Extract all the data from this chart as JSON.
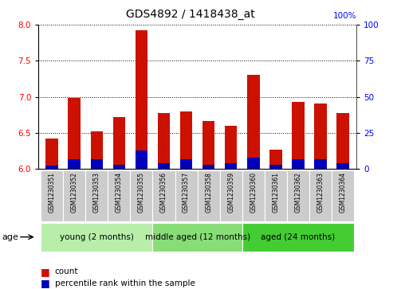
{
  "title": "GDS4892 / 1418438_at",
  "samples": [
    "GSM1230351",
    "GSM1230352",
    "GSM1230353",
    "GSM1230354",
    "GSM1230355",
    "GSM1230356",
    "GSM1230357",
    "GSM1230358",
    "GSM1230359",
    "GSM1230360",
    "GSM1230361",
    "GSM1230362",
    "GSM1230363",
    "GSM1230364"
  ],
  "count_values": [
    6.42,
    6.99,
    6.52,
    6.72,
    7.92,
    6.77,
    6.8,
    6.67,
    6.6,
    7.3,
    6.27,
    6.93,
    6.91,
    6.78
  ],
  "percentile_values": [
    2.5,
    7,
    7,
    3,
    13,
    4,
    7,
    3,
    4,
    8,
    3,
    7,
    7,
    4
  ],
  "ylim_left": [
    6.0,
    8.0
  ],
  "ylim_right": [
    0,
    100
  ],
  "yticks_left": [
    6.0,
    6.5,
    7.0,
    7.5,
    8.0
  ],
  "yticks_right": [
    0,
    25,
    50,
    75,
    100
  ],
  "groups": [
    {
      "label": "young (2 months)",
      "indices": [
        0,
        1,
        2,
        3,
        4
      ],
      "color": "#b8eeaa"
    },
    {
      "label": "middle aged (12 months)",
      "indices": [
        5,
        6,
        7,
        8
      ],
      "color": "#88dd77"
    },
    {
      "label": "aged (24 months)",
      "indices": [
        9,
        10,
        11,
        12,
        13
      ],
      "color": "#44cc33"
    }
  ],
  "bar_color_red": "#cc1100",
  "bar_color_blue": "#0000bb",
  "bar_width": 0.55,
  "background_color": "#ffffff",
  "plot_bg_color": "#ffffff",
  "label_bg_color": "#cccccc",
  "age_label": "age",
  "legend_count": "count",
  "legend_percentile": "percentile rank within the sample",
  "title_fontsize": 10,
  "tick_fontsize": 7.5,
  "sample_fontsize": 5.5,
  "group_fontsize": 7.5,
  "legend_fontsize": 7.5
}
